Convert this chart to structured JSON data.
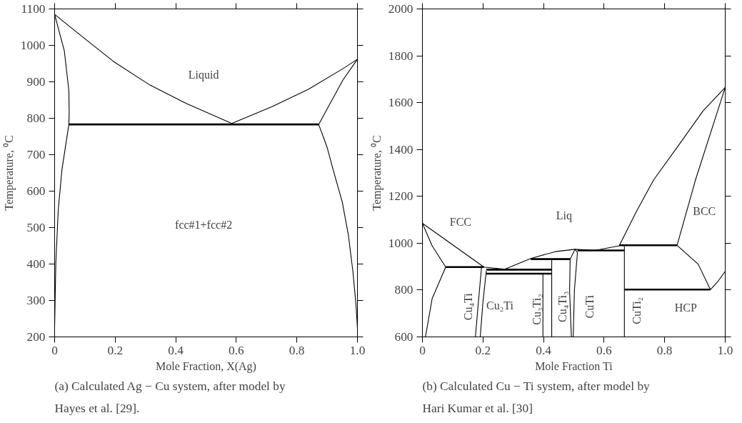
{
  "chart_data": [
    {
      "type": "line",
      "xlabel": "Mole Fraction, X(Ag)",
      "ylabel": "Temperature, ⁰C",
      "xlim": [
        0,
        1
      ],
      "ylim": [
        200,
        1100
      ],
      "xticks": [
        0,
        0.2,
        0.4,
        0.6,
        0.8,
        {
          "value": 1,
          "label": "1.0"
        }
      ],
      "yticks": [
        200,
        300,
        400,
        500,
        600,
        700,
        800,
        900,
        1000,
        1100
      ],
      "grid": false,
      "marker": "none",
      "line_style": "solid",
      "series": [
        {
          "color": "#000000",
          "x": [
            0,
            0.073,
            0.194,
            0.315,
            0.436,
            0.585,
            0.718,
            0.839,
            0.952,
            1.0
          ],
          "values": [
            1085,
            1036,
            956,
            891,
            840,
            786,
            832,
            880,
            936,
            962
          ]
        },
        {
          "color": "#000000",
          "x": [
            1.0,
            0.952,
            0.872,
            0.9,
            0.92,
            0.95,
            0.97,
            0.985,
            0.995,
            1.0
          ],
          "values": [
            962,
            905,
            783,
            720,
            658,
            570,
            480,
            380,
            290,
            225
          ]
        },
        {
          "color": "#000000",
          "x": [
            0,
            0.032,
            0.047,
            0.048,
            0.047,
            0.024,
            0.012,
            0.004,
            0
          ],
          "values": [
            1085,
            985,
            876,
            818,
            783,
            658,
            549,
            404,
            229
          ]
        },
        {
          "color": "#000000",
          "x": [
            0.047,
            0.872
          ],
          "values": [
            783,
            783
          ]
        }
      ],
      "annotations": [
        "Liquid",
        "fcc#1+fcc#2",
        "(a) Calculated Ag − Cu system, after model by Hayes et al. [29]."
      ]
    },
    {
      "type": "line",
      "xlabel": "Mole Fraction Ti",
      "ylabel": "Temperature, ⁰C",
      "xlim": [
        0,
        1
      ],
      "ylim": [
        600,
        2000
      ],
      "xticks": [
        0,
        0.2,
        0.4,
        0.6,
        0.8,
        {
          "value": 1,
          "label": "1.0"
        }
      ],
      "yticks": [
        600,
        800,
        1000,
        1200,
        1400,
        1600,
        1800,
        2000
      ],
      "grid": false,
      "marker": "none",
      "line_style": "solid",
      "series": [
        {
          "color": "#000000",
          "x": [
            0,
            0.203,
            0.272,
            0.358,
            0.439,
            0.504,
            0.569,
            0.65,
            0.707,
            0.764,
            0.846,
            0.927,
            1.0
          ],
          "values": [
            1085,
            898,
            889,
            935,
            964,
            974,
            969,
            989,
            1136,
            1271,
            1418,
            1565,
            1665
          ]
        },
        {
          "color": "#000000",
          "x": [
            1.0,
            0.902,
            0.841,
            0.911,
            0.951,
            0.976,
            1.0
          ],
          "values": [
            1665,
            1271,
            991,
            910,
            802,
            837,
            880
          ]
        },
        {
          "color": "#000000",
          "x": [
            0.65,
            0.841
          ],
          "values": [
            991,
            991
          ]
        },
        {
          "color": "#000000",
          "x": [
            0.667,
            0.951
          ],
          "values": [
            802,
            802
          ]
        },
        {
          "color": "#000000",
          "x": [
            0.667,
            0.667
          ],
          "values": [
            600,
            991
          ]
        },
        {
          "color": "#000000",
          "x": [
            0,
            0.032,
            0.077,
            0.032,
            0.01
          ],
          "values": [
            1085,
            989,
            898,
            763,
            600
          ]
        },
        {
          "color": "#000000",
          "x": [
            0.077,
            0.203
          ],
          "values": [
            898,
            898
          ]
        },
        {
          "color": "#000000",
          "x": [
            0.195,
            0.185,
            0.175
          ],
          "values": [
            895,
            750,
            600
          ]
        },
        {
          "color": "#000000",
          "x": [
            0.211,
            0.2,
            0.191
          ],
          "values": [
            882,
            750,
            600
          ]
        },
        {
          "color": "#000000",
          "x": [
            0.211,
            0.427
          ],
          "values": [
            887,
            887
          ]
        },
        {
          "color": "#000000",
          "x": [
            0.211,
            0.427
          ],
          "values": [
            870,
            870
          ]
        },
        {
          "color": "#000000",
          "x": [
            0.398,
            0.398
          ],
          "values": [
            600,
            870
          ]
        },
        {
          "color": "#000000",
          "x": [
            0.427,
            0.427
          ],
          "values": [
            600,
            932
          ]
        },
        {
          "color": "#000000",
          "x": [
            0.358,
            0.488
          ],
          "values": [
            932,
            932
          ]
        },
        {
          "color": "#000000",
          "x": [
            0.492,
            0.486,
            0.488,
            0.504,
            0.512,
            0.502,
            0.498
          ],
          "values": [
            600,
            800,
            932,
            974,
            960,
            800,
            600
          ]
        },
        {
          "color": "#000000",
          "x": [
            0.512,
            0.667
          ],
          "values": [
            969,
            969
          ]
        }
      ],
      "annotations": [
        "FCC",
        "Liq",
        "BCC",
        "Cu₄Ti",
        "Cu₂Ti",
        "Cu₃Ti₂",
        "Cu₄Ti₃",
        "CuTi",
        "CuTi₂",
        "HCP",
        "(b) Calculated Cu − Ti system, after model by Hari Kumar et al. [30]"
      ]
    }
  ]
}
